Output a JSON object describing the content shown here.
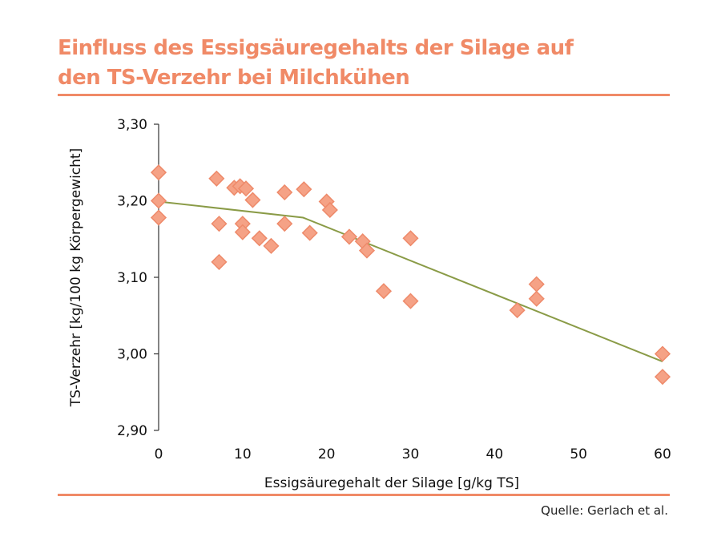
{
  "title_line1": "Einfluss des Essigsäuregehalts der Silage auf",
  "title_line2": "den TS-Verzehr bei Milchkühen",
  "source": "Quelle: Gerlach et al.",
  "colors": {
    "accent": "#f08a67",
    "marker_fill": "#f5a286",
    "marker_stroke": "#ee8a6a",
    "trend": "#8a9b47"
  },
  "chart_data": {
    "type": "scatter",
    "xlabel": "Essigsäuregehalt der Silage [g/kg TS]",
    "ylabel": "TS-Verzehr [kg/100 kg Körpergewicht]",
    "xlim": [
      0,
      60
    ],
    "ylim": [
      2.9,
      3.3
    ],
    "xticks": [
      0,
      10,
      20,
      30,
      40,
      50,
      60
    ],
    "yticks": [
      2.9,
      3.0,
      3.1,
      3.2,
      3.3
    ],
    "ytick_labels": [
      "2,90",
      "3,00",
      "3,10",
      "3,20",
      "3,30"
    ],
    "grid": false,
    "points": [
      [
        0,
        3.237
      ],
      [
        0,
        3.2
      ],
      [
        0,
        3.178
      ],
      [
        6.9,
        3.229
      ],
      [
        7.2,
        3.17
      ],
      [
        7.2,
        3.12
      ],
      [
        9.0,
        3.217
      ],
      [
        9.7,
        3.219
      ],
      [
        10.4,
        3.216
      ],
      [
        10.0,
        3.17
      ],
      [
        10.0,
        3.159
      ],
      [
        11.2,
        3.201
      ],
      [
        12.0,
        3.151
      ],
      [
        13.4,
        3.141
      ],
      [
        15.0,
        3.211
      ],
      [
        15.0,
        3.17
      ],
      [
        17.3,
        3.215
      ],
      [
        18.0,
        3.158
      ],
      [
        20.0,
        3.199
      ],
      [
        20.4,
        3.188
      ],
      [
        22.7,
        3.153
      ],
      [
        24.3,
        3.147
      ],
      [
        24.8,
        3.135
      ],
      [
        26.8,
        3.082
      ],
      [
        30.0,
        3.151
      ],
      [
        30.0,
        3.069
      ],
      [
        42.7,
        3.057
      ],
      [
        45.0,
        3.091
      ],
      [
        45.0,
        3.072
      ],
      [
        60,
        3.0
      ],
      [
        60,
        2.97
      ]
    ],
    "trend_line": [
      [
        0,
        3.199
      ],
      [
        17.2,
        3.178
      ],
      [
        60,
        2.99
      ]
    ]
  }
}
